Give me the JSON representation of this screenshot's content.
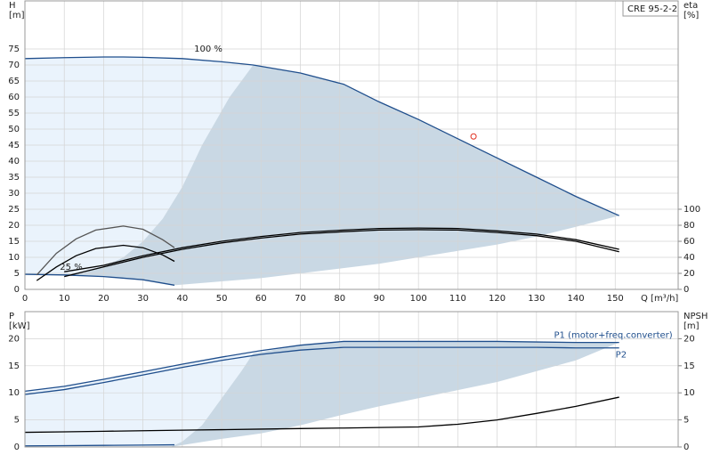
{
  "chart_data": [
    {
      "type": "line",
      "title": "CRE 95-2-2",
      "xlabel": "Q [m³/h]",
      "ylabel": "H",
      "yunit": "[m]",
      "y2label": "eta",
      "y2unit": "[%]",
      "xlim": [
        0,
        166
      ],
      "ylim": [
        0,
        90
      ],
      "y2lim": [
        0,
        360
      ],
      "xticks": [
        0,
        10,
        20,
        30,
        40,
        50,
        60,
        70,
        80,
        90,
        100,
        110,
        120,
        130,
        140,
        150
      ],
      "yticks": [
        0,
        5,
        10,
        15,
        20,
        25,
        30,
        35,
        40,
        45,
        50,
        55,
        60,
        65,
        70,
        75
      ],
      "y2ticks": [
        0,
        20,
        40,
        60,
        80,
        100
      ],
      "grid": true,
      "annotations": [
        "100 %",
        "25 %"
      ],
      "regions": [
        {
          "color": "#eaf3fc",
          "x": [
            0,
            10,
            20,
            30,
            40,
            50,
            58,
            52,
            45,
            40,
            35,
            30,
            25,
            20,
            15,
            10,
            5,
            3,
            0
          ],
          "y": [
            72,
            72.3,
            72.5,
            72.4,
            72,
            71,
            70,
            60,
            45,
            32,
            22,
            15,
            10,
            7,
            5.2,
            4.8,
            4.6,
            4.6,
            4.7
          ]
        },
        {
          "color": "#c9d8e4",
          "x": [
            3,
            10,
            20,
            30,
            38,
            50,
            60,
            70,
            80,
            90,
            100,
            110,
            120,
            130,
            140,
            151,
            140,
            130,
            120,
            110,
            100,
            90,
            81,
            70,
            58,
            52,
            45,
            40,
            35,
            30,
            25,
            20,
            15,
            10,
            5
          ],
          "y": [
            4.6,
            4.5,
            4,
            3,
            1.3,
            2.5,
            3.5,
            5,
            6.5,
            8,
            10,
            12,
            14,
            16.5,
            19.5,
            23,
            29,
            35,
            41,
            47,
            53,
            58.5,
            64,
            67.5,
            70,
            60,
            45,
            32,
            22,
            15,
            10,
            7,
            5.2,
            4.8,
            4.6
          ]
        }
      ],
      "series": [
        {
          "color": "#1f4e8c",
          "x": [
            0,
            10,
            20,
            25,
            30,
            40,
            50,
            58,
            70,
            81,
            90,
            100,
            110,
            120,
            130,
            140,
            151
          ],
          "values": [
            72,
            72.3,
            72.5,
            72.5,
            72.4,
            72,
            71,
            70,
            67.5,
            64,
            58.5,
            53,
            47,
            41,
            35,
            29,
            23
          ]
        },
        {
          "color": "#1f4e8c",
          "x": [
            0,
            10,
            20,
            30,
            38
          ],
          "values": [
            4.7,
            4.5,
            4,
            3,
            1.3
          ]
        },
        {
          "color": "#000000",
          "axis": "y2",
          "x": [
            10,
            20,
            30,
            40,
            50,
            60,
            70,
            81,
            90,
            100,
            110,
            120,
            130,
            140,
            151
          ],
          "values": [
            22,
            30,
            42,
            52,
            60,
            66,
            71,
            74,
            76,
            76.5,
            76,
            73,
            69,
            62,
            50
          ]
        },
        {
          "color": "#000000",
          "axis": "y2",
          "x": [
            10,
            20,
            30,
            40,
            50,
            60,
            70,
            81,
            90,
            100,
            110,
            120,
            130,
            140,
            151
          ],
          "values": [
            16,
            28,
            40,
            50,
            58,
            64,
            69,
            72,
            74,
            74.5,
            74,
            71,
            67,
            60,
            47
          ]
        },
        {
          "color": "#555555",
          "axis": "y2",
          "x": [
            3,
            8,
            13,
            18,
            25,
            30,
            35,
            38
          ],
          "values": [
            18,
            45,
            63,
            74,
            79,
            75,
            62,
            52
          ]
        },
        {
          "color": "#000000",
          "axis": "y2",
          "x": [
            3,
            8,
            13,
            18,
            25,
            30,
            35,
            38
          ],
          "values": [
            11,
            28,
            42,
            51,
            55,
            52,
            43,
            35
          ]
        }
      ],
      "duty_point": {
        "x": 114,
        "y": 47.7,
        "color": "#e03020"
      }
    },
    {
      "type": "line",
      "ylabel": "P",
      "yunit": "[kW]",
      "y2label": "NPSH",
      "y2unit": "[m]",
      "xlim": [
        0,
        166
      ],
      "ylim": [
        0,
        25
      ],
      "y2lim": [
        0,
        25
      ],
      "xticks": [
        0,
        10,
        20,
        30,
        40,
        50,
        60,
        70,
        80,
        90,
        100,
        110,
        120,
        130,
        140,
        150
      ],
      "yticks": [
        0,
        5,
        10,
        15,
        20
      ],
      "y2ticks": [
        0,
        5,
        10,
        15,
        20
      ],
      "grid": true,
      "regions": [
        {
          "color": "#eaf3fc",
          "x": [
            0,
            10,
            20,
            30,
            40,
            50,
            58,
            55,
            50,
            45,
            40,
            37,
            0
          ],
          "y": [
            10.3,
            11.2,
            12.5,
            13.9,
            15.3,
            16.6,
            17.3,
            14,
            9,
            4,
            1,
            0,
            0
          ]
        },
        {
          "color": "#c9d8e4",
          "x": [
            37,
            50,
            60,
            70,
            81,
            90,
            100,
            110,
            120,
            130,
            140,
            151,
            140,
            130,
            120,
            110,
            100,
            90,
            81,
            70,
            58,
            55,
            50,
            45,
            40
          ],
          "y": [
            0,
            1.5,
            2.5,
            4,
            6,
            7.5,
            9,
            10.5,
            12,
            14,
            16,
            19.3,
            19.4,
            19.5,
            19.5,
            19.5,
            19.5,
            19.5,
            19.5,
            18.8,
            17.3,
            14,
            9,
            4,
            1
          ]
        }
      ],
      "series": [
        {
          "name": "P1 (motor+freq.converter)",
          "color": "#1f4e8c",
          "x": [
            0,
            10,
            20,
            30,
            40,
            50,
            60,
            70,
            81,
            90,
            100,
            110,
            120,
            130,
            140,
            151
          ],
          "values": [
            10.3,
            11.2,
            12.5,
            13.9,
            15.3,
            16.6,
            17.8,
            18.8,
            19.5,
            19.5,
            19.5,
            19.5,
            19.5,
            19.4,
            19.3,
            19.3
          ]
        },
        {
          "name": "P2",
          "color": "#1f4e8c",
          "x": [
            0,
            10,
            20,
            30,
            40,
            50,
            60,
            70,
            81,
            90,
            100,
            110,
            120,
            130,
            140,
            151
          ],
          "values": [
            9.7,
            10.6,
            11.9,
            13.3,
            14.7,
            16.0,
            17.1,
            17.9,
            18.4,
            18.4,
            18.4,
            18.4,
            18.4,
            18.4,
            18.3,
            18.3
          ]
        },
        {
          "color": "#1f4e8c",
          "x": [
            0,
            10,
            20,
            30,
            38
          ],
          "values": [
            0.2,
            0.25,
            0.3,
            0.35,
            0.4
          ]
        },
        {
          "color": "#000000",
          "axis": "y2",
          "x": [
            0,
            10,
            20,
            30,
            40,
            50,
            60,
            70,
            81,
            90,
            100,
            110,
            120,
            130,
            140,
            151
          ],
          "values": [
            2.7,
            2.8,
            2.9,
            3.0,
            3.1,
            3.2,
            3.3,
            3.4,
            3.5,
            3.6,
            3.7,
            4.2,
            5.0,
            6.2,
            7.5,
            9.2
          ]
        }
      ]
    }
  ]
}
